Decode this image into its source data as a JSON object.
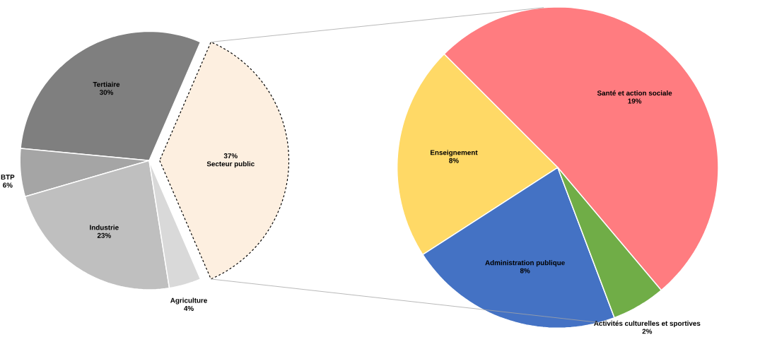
{
  "chart_data": [
    {
      "type": "pie",
      "categories": [
        "Secteur public",
        "Tertiaire",
        "BTP",
        "Industrie",
        "Agriculture"
      ],
      "values": [
        37,
        30,
        6,
        23,
        4
      ],
      "value_labels": [
        "37%",
        "30%",
        "6%",
        "23%",
        "4%"
      ],
      "colors": [
        "#fdefe0",
        "#7f7f7f",
        "#a5a5a5",
        "#bfbfbf",
        "#d9d9d9"
      ]
    },
    {
      "type": "pie",
      "categories": [
        "Santé et action sociale",
        "Enseignement",
        "Administration publique",
        "Activités culturelles et sportives"
      ],
      "values": [
        19,
        8,
        8,
        2
      ],
      "value_labels": [
        "19%",
        "8%",
        "8%",
        "2%"
      ],
      "colors": [
        "#ff7c80",
        "#ffd966",
        "#4472c4",
        "#70ad47"
      ]
    }
  ]
}
